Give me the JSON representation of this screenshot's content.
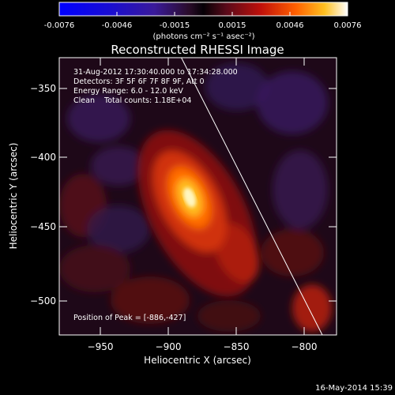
{
  "colorbar": {
    "tick_labels": [
      "-0.0076",
      "-0.0046",
      "-0.0015",
      "0.0015",
      "0.0046",
      "0.0076"
    ],
    "units": "(photons cm⁻² s⁻¹ asec⁻²)"
  },
  "figure": {
    "title": "Reconstructed RHESSI Image",
    "xlabel": "Heliocentric X (arcsec)",
    "ylabel": "Heliocentric Y (arcsec)",
    "x_ticks": [
      "−950",
      "−900",
      "−850",
      "−800"
    ],
    "y_ticks": [
      "−350",
      "−400",
      "−450",
      "−500"
    ]
  },
  "annotations": {
    "line1": "31-Aug-2012 17:30:40.000 to 17:34:28.000",
    "line2": "Detectors: 3F 5F 6F 7F 8F 9F, Att 0",
    "line3": "Energy Range: 6.0 - 12.0 keV",
    "line4": "Clean    Total counts: 1.18E+04",
    "peak": "Position of Peak = [-886,-427]"
  },
  "footer": {
    "timestamp": "16-May-2014 15:39"
  }
}
